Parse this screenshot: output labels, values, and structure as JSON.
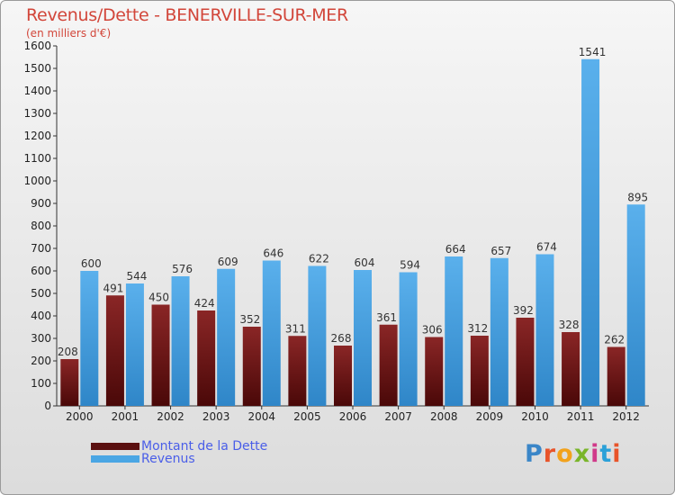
{
  "header": {
    "title": "Revenus/Dette - BENERVILLE-SUR-MER",
    "subtitle": "(en milliers d'€)"
  },
  "legend": {
    "items": [
      {
        "label": "Montant de la Dette",
        "color": "#7a1a1a"
      },
      {
        "label": "Revenus",
        "color": "#4aa6e4"
      }
    ]
  },
  "logo": {
    "text": "Proxiti"
  },
  "chart_data": {
    "type": "bar",
    "title": "Revenus/Dette - BENERVILLE-SUR-MER",
    "subtitle": "(en milliers d'€)",
    "categories": [
      "2000",
      "2001",
      "2002",
      "2003",
      "2004",
      "2005",
      "2006",
      "2007",
      "2008",
      "2009",
      "2010",
      "2011",
      "2012"
    ],
    "series": [
      {
        "name": "Montant de la Dette",
        "color": "#7a1a1a",
        "values": [
          208,
          491,
          450,
          424,
          352,
          311,
          268,
          361,
          306,
          312,
          392,
          328,
          262
        ]
      },
      {
        "name": "Revenus",
        "color": "#4aa6e4",
        "values": [
          600,
          544,
          576,
          609,
          646,
          622,
          604,
          594,
          664,
          657,
          674,
          1541,
          895
        ]
      }
    ],
    "ylim": [
      0,
      1600
    ],
    "yticks": [
      0,
      100,
      200,
      300,
      400,
      500,
      600,
      700,
      800,
      900,
      1000,
      1100,
      1200,
      1300,
      1400,
      1500,
      1600
    ],
    "grid": false,
    "legend_position": "bottom-left"
  }
}
